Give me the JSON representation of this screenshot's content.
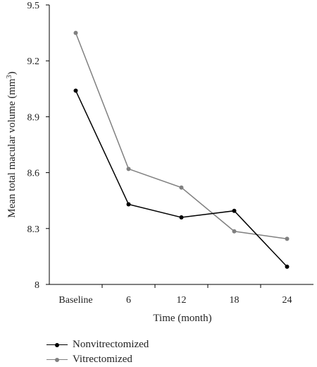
{
  "chart_data": {
    "type": "line",
    "categories": [
      "Baseline",
      "6",
      "12",
      "18",
      "24"
    ],
    "series": [
      {
        "name": "Nonvitrectomized",
        "color": "#000000",
        "values": [
          9.04,
          8.43,
          8.36,
          8.395,
          8.095
        ]
      },
      {
        "name": "Vitrectomized",
        "color": "#808080",
        "values": [
          9.35,
          8.62,
          8.52,
          8.285,
          8.245
        ]
      }
    ],
    "xlabel": "Time (month)",
    "ylabel": "Mean total macular volume (mm",
    "ylabel_sup": "3",
    "ylabel_close": ")",
    "ylim": [
      8.0,
      9.5
    ],
    "yticks": [
      "8",
      "8.3",
      "8.6",
      "8.9",
      "9.2",
      "9.5"
    ],
    "ytick_values": [
      8.0,
      8.3,
      8.6,
      8.9,
      9.2,
      9.5
    ],
    "grid": false,
    "legend_position": "bottom-left"
  }
}
